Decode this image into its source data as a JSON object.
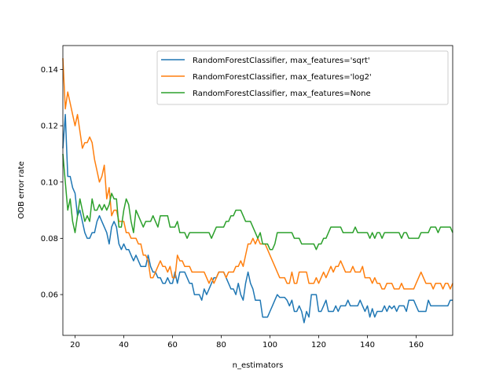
{
  "chart_data": {
    "type": "line",
    "title": "",
    "xlabel": "n_estimators",
    "ylabel": "OOB error rate",
    "xlim": [
      15,
      175
    ],
    "ylim": [
      0.0455,
      0.1485
    ],
    "xticks": [
      20,
      40,
      60,
      80,
      100,
      120,
      140,
      160
    ],
    "xtick_labels": [
      "20",
      "40",
      "60",
      "80",
      "100",
      "120",
      "140",
      "160"
    ],
    "yticks": [
      0.06,
      0.08,
      0.1,
      0.12,
      0.14
    ],
    "ytick_labels": [
      "0.06",
      "0.08",
      "0.10",
      "0.12",
      "0.14"
    ],
    "grid": false,
    "legend_position": "top-right",
    "x_start": 15,
    "x_step": 1,
    "series": [
      {
        "name": "RandomForestClassifier, max_features='sqrt'",
        "color": "#1f77b4",
        "values": [
          0.112,
          0.124,
          0.102,
          0.102,
          0.098,
          0.096,
          0.088,
          0.09,
          0.086,
          0.082,
          0.08,
          0.08,
          0.082,
          0.082,
          0.086,
          0.088,
          0.086,
          0.084,
          0.082,
          0.078,
          0.084,
          0.086,
          0.084,
          0.078,
          0.076,
          0.078,
          0.076,
          0.076,
          0.074,
          0.072,
          0.074,
          0.072,
          0.07,
          0.07,
          0.07,
          0.074,
          0.07,
          0.068,
          0.068,
          0.066,
          0.066,
          0.064,
          0.064,
          0.066,
          0.064,
          0.064,
          0.068,
          0.064,
          0.068,
          0.068,
          0.068,
          0.066,
          0.064,
          0.064,
          0.06,
          0.06,
          0.06,
          0.058,
          0.062,
          0.06,
          0.062,
          0.064,
          0.066,
          0.066,
          0.068,
          0.068,
          0.068,
          0.066,
          0.064,
          0.062,
          0.062,
          0.06,
          0.064,
          0.06,
          0.058,
          0.064,
          0.068,
          0.064,
          0.062,
          0.058,
          0.058,
          0.058,
          0.052,
          0.052,
          0.052,
          0.054,
          0.056,
          0.058,
          0.06,
          0.059,
          0.059,
          0.059,
          0.058,
          0.056,
          0.058,
          0.054,
          0.054,
          0.056,
          0.054,
          0.05,
          0.054,
          0.052,
          0.06,
          0.06,
          0.06,
          0.054,
          0.054,
          0.056,
          0.058,
          0.054,
          0.054,
          0.054,
          0.056,
          0.054,
          0.056,
          0.056,
          0.056,
          0.058,
          0.056,
          0.056,
          0.056,
          0.056,
          0.058,
          0.056,
          0.054,
          0.056,
          0.052,
          0.055,
          0.052,
          0.054,
          0.054,
          0.054,
          0.056,
          0.054,
          0.056,
          0.055,
          0.056,
          0.054,
          0.056,
          0.056,
          0.056,
          0.054,
          0.058,
          0.058,
          0.058,
          0.056,
          0.054,
          0.054,
          0.054,
          0.054,
          0.058,
          0.056,
          0.056,
          0.056,
          0.056,
          0.056,
          0.056,
          0.056,
          0.056,
          0.058,
          0.058
        ]
      },
      {
        "name": "RandomForestClassifier, max_features='log2'",
        "color": "#ff7f0e",
        "values": [
          0.144,
          0.126,
          0.132,
          0.128,
          0.124,
          0.12,
          0.124,
          0.118,
          0.112,
          0.114,
          0.114,
          0.116,
          0.114,
          0.108,
          0.104,
          0.1,
          0.102,
          0.106,
          0.094,
          0.098,
          0.088,
          0.09,
          0.09,
          0.086,
          0.086,
          0.086,
          0.082,
          0.082,
          0.08,
          0.08,
          0.08,
          0.078,
          0.078,
          0.074,
          0.074,
          0.072,
          0.066,
          0.066,
          0.068,
          0.07,
          0.072,
          0.07,
          0.07,
          0.068,
          0.07,
          0.066,
          0.066,
          0.074,
          0.072,
          0.072,
          0.07,
          0.07,
          0.07,
          0.068,
          0.068,
          0.068,
          0.068,
          0.068,
          0.068,
          0.066,
          0.064,
          0.066,
          0.064,
          0.066,
          0.068,
          0.068,
          0.068,
          0.066,
          0.068,
          0.068,
          0.068,
          0.07,
          0.07,
          0.072,
          0.07,
          0.074,
          0.078,
          0.078,
          0.08,
          0.078,
          0.08,
          0.078,
          0.078,
          0.078,
          0.076,
          0.074,
          0.072,
          0.07,
          0.068,
          0.066,
          0.066,
          0.066,
          0.064,
          0.064,
          0.068,
          0.064,
          0.064,
          0.068,
          0.068,
          0.068,
          0.068,
          0.064,
          0.064,
          0.064,
          0.066,
          0.064,
          0.066,
          0.068,
          0.066,
          0.068,
          0.07,
          0.068,
          0.07,
          0.07,
          0.072,
          0.07,
          0.068,
          0.068,
          0.068,
          0.07,
          0.068,
          0.068,
          0.068,
          0.07,
          0.066,
          0.066,
          0.066,
          0.064,
          0.066,
          0.064,
          0.064,
          0.062,
          0.062,
          0.064,
          0.064,
          0.064,
          0.062,
          0.062,
          0.062,
          0.064,
          0.062,
          0.062,
          0.062,
          0.062,
          0.062,
          0.064,
          0.066,
          0.068,
          0.066,
          0.064,
          0.064,
          0.064,
          0.062,
          0.064,
          0.064,
          0.064,
          0.062,
          0.064,
          0.064,
          0.062,
          0.064
        ]
      },
      {
        "name": "RandomForestClassifier, max_features=None",
        "color": "#2ca02c",
        "values": [
          0.11,
          0.1,
          0.09,
          0.094,
          0.086,
          0.082,
          0.088,
          0.094,
          0.09,
          0.086,
          0.088,
          0.086,
          0.094,
          0.09,
          0.09,
          0.092,
          0.09,
          0.092,
          0.09,
          0.092,
          0.096,
          0.094,
          0.094,
          0.084,
          0.084,
          0.09,
          0.094,
          0.092,
          0.086,
          0.082,
          0.09,
          0.088,
          0.086,
          0.084,
          0.086,
          0.086,
          0.086,
          0.088,
          0.086,
          0.084,
          0.088,
          0.088,
          0.088,
          0.088,
          0.084,
          0.084,
          0.084,
          0.086,
          0.082,
          0.082,
          0.082,
          0.08,
          0.082,
          0.082,
          0.082,
          0.082,
          0.082,
          0.082,
          0.082,
          0.082,
          0.082,
          0.08,
          0.082,
          0.084,
          0.084,
          0.084,
          0.084,
          0.086,
          0.086,
          0.088,
          0.088,
          0.09,
          0.09,
          0.09,
          0.088,
          0.086,
          0.086,
          0.086,
          0.084,
          0.082,
          0.08,
          0.082,
          0.078,
          0.078,
          0.078,
          0.076,
          0.076,
          0.078,
          0.082,
          0.082,
          0.082,
          0.082,
          0.082,
          0.082,
          0.082,
          0.08,
          0.08,
          0.08,
          0.078,
          0.078,
          0.078,
          0.078,
          0.078,
          0.078,
          0.076,
          0.078,
          0.078,
          0.08,
          0.08,
          0.082,
          0.084,
          0.084,
          0.084,
          0.084,
          0.084,
          0.082,
          0.082,
          0.082,
          0.082,
          0.082,
          0.084,
          0.082,
          0.082,
          0.082,
          0.082,
          0.082,
          0.08,
          0.082,
          0.08,
          0.082,
          0.082,
          0.08,
          0.082,
          0.082,
          0.082,
          0.082,
          0.082,
          0.082,
          0.082,
          0.08,
          0.082,
          0.082,
          0.08,
          0.08,
          0.08,
          0.08,
          0.08,
          0.082,
          0.082,
          0.082,
          0.082,
          0.084,
          0.084,
          0.084,
          0.082,
          0.084,
          0.084,
          0.084,
          0.084,
          0.084,
          0.082
        ]
      }
    ]
  }
}
